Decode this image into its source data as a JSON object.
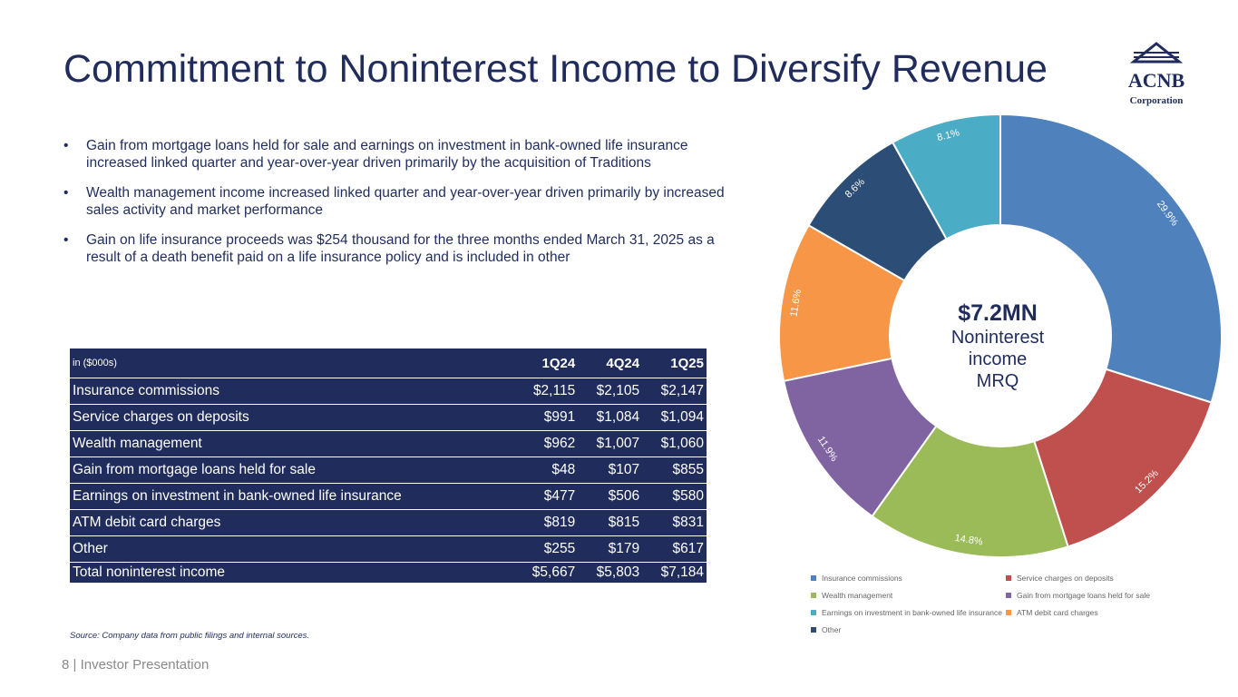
{
  "title": "Commitment to Noninterest Income to Diversify Revenue",
  "logo": {
    "name": "ACNB",
    "sub": "Corporation"
  },
  "bullets": [
    "Gain from mortgage loans held for sale and earnings on investment in bank-owned life insurance increased linked quarter and year-over-year driven primarily by the acquisition of Traditions",
    "Wealth management income increased linked quarter and year-over-year driven primarily by increased sales activity and market performance",
    "Gain on life insurance proceeds was $254 thousand for the three months ended March 31, 2025 as a result of a death benefit paid on a life insurance policy and is included in other"
  ],
  "table": {
    "header": [
      "in ($000s)",
      "1Q24",
      "4Q24",
      "1Q25"
    ],
    "rows": [
      [
        "Insurance commissions",
        "$2,115",
        "$2,105",
        "$2,147"
      ],
      [
        "Service charges on deposits",
        "$991",
        "$1,084",
        "$1,094"
      ],
      [
        "Wealth management",
        "$962",
        "$1,007",
        "$1,060"
      ],
      [
        "Gain from mortgage loans held for sale",
        "$48",
        "$107",
        "$855"
      ],
      [
        "Earnings on investment in bank-owned life insurance",
        "$477",
        "$506",
        "$580"
      ],
      [
        "ATM debit card charges",
        "$819",
        "$815",
        "$831"
      ],
      [
        "Other",
        "$255",
        "$179",
        "$617"
      ]
    ],
    "total": [
      "Total noninterest income",
      "$5,667",
      "$5,803",
      "$7,184"
    ]
  },
  "source": "Source: Company data from public filings and internal sources.",
  "footer": "8  | Investor Presentation",
  "center": {
    "value": "$7.2MN",
    "lines": [
      "Noninterest",
      "income",
      "MRQ"
    ]
  },
  "chart_data": {
    "type": "pie",
    "donut": true,
    "categories": [
      "Insurance commissions",
      "Service charges on deposits",
      "Wealth management",
      "Gain from mortgage loans held for sale",
      "ATM debit card charges",
      "Other",
      "Earnings on investment in bank-owned life insurance"
    ],
    "values": [
      29.9,
      15.2,
      14.8,
      11.9,
      11.6,
      8.6,
      8.1
    ],
    "labels": [
      "29.9%",
      "15.2%",
      "14.8%",
      "11.9%",
      "11.6%",
      "8.6%",
      "8.1%"
    ],
    "colors": [
      "#4f81bd",
      "#c0504d",
      "#9bbb59",
      "#8064a2",
      "#f79646",
      "#2c4d75",
      "#4bacc6"
    ],
    "legend": [
      {
        "label": "Insurance commissions",
        "color": "#4f81bd"
      },
      {
        "label": "Service charges on deposits",
        "color": "#c0504d"
      },
      {
        "label": "Wealth management",
        "color": "#9bbb59"
      },
      {
        "label": "Gain from mortgage loans held for sale",
        "color": "#8064a2"
      },
      {
        "label": "Earnings on investment in bank-owned life insurance",
        "color": "#4bacc6"
      },
      {
        "label": "ATM debit card charges",
        "color": "#f79646"
      },
      {
        "label": "Other",
        "color": "#2c4d75"
      }
    ],
    "legend_position": "bottom"
  }
}
